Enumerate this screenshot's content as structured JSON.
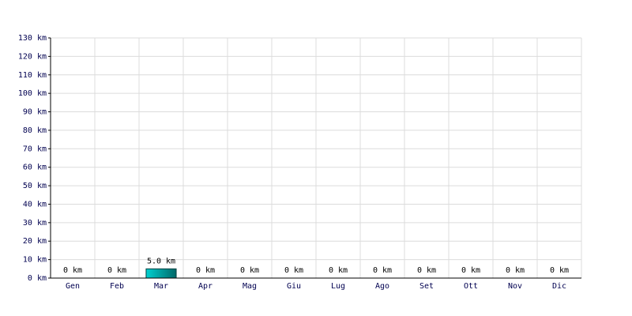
{
  "chart_data": {
    "type": "bar",
    "categories": [
      "Gen",
      "Feb",
      "Mar",
      "Apr",
      "Mag",
      "Giu",
      "Lug",
      "Ago",
      "Set",
      "Ott",
      "Nov",
      "Dic"
    ],
    "values": [
      0,
      0,
      5.0,
      0,
      0,
      0,
      0,
      0,
      0,
      0,
      0,
      0
    ],
    "value_labels": [
      "0 km",
      "0 km",
      "5.0 km",
      "0 km",
      "0 km",
      "0 km",
      "0 km",
      "0 km",
      "0 km",
      "0 km",
      "0 km",
      "0 km"
    ],
    "color": "#00d0d0",
    "ylim": [
      0,
      130
    ],
    "yticks": [
      {
        "value": 0,
        "label": "0 km"
      },
      {
        "value": 10,
        "label": "10 km"
      },
      {
        "value": 20,
        "label": "20 km"
      },
      {
        "value": 30,
        "label": "30 km"
      },
      {
        "value": 40,
        "label": "40 km"
      },
      {
        "value": 50,
        "label": "50 km"
      },
      {
        "value": 60,
        "label": "60 km"
      },
      {
        "value": 70,
        "label": "70 km"
      },
      {
        "value": 80,
        "label": "80 km"
      },
      {
        "value": 90,
        "label": "90 km"
      },
      {
        "value": 100,
        "label": "100 km"
      },
      {
        "value": 110,
        "label": "110 km"
      },
      {
        "value": 120,
        "label": "120 km"
      },
      {
        "value": 130,
        "label": "130 km"
      }
    ],
    "grid": true
  }
}
